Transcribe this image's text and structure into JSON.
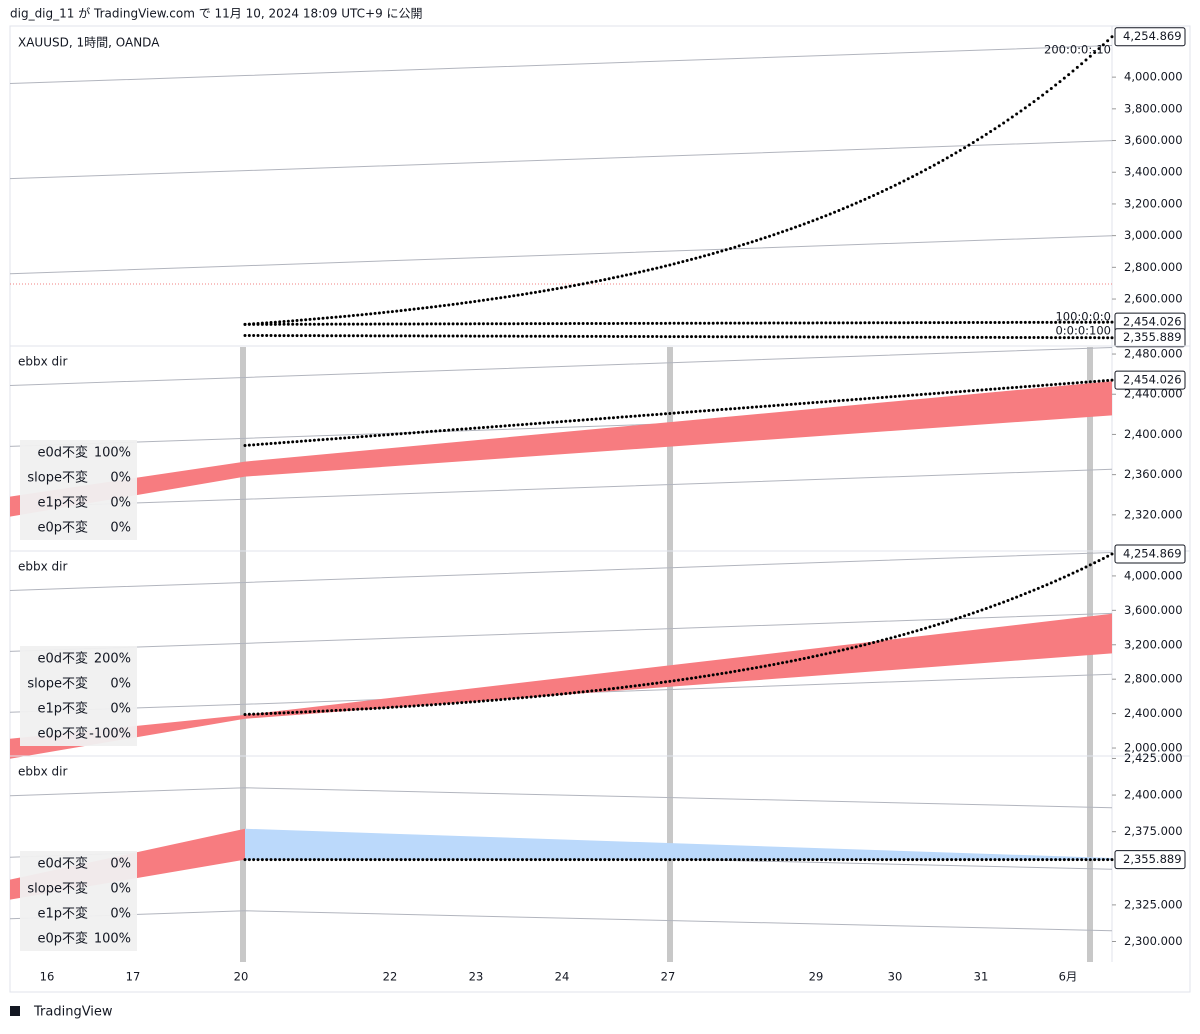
{
  "header": {
    "text": "dig_dig_11 が TradingView.com で 11月 10, 2024 18:09 UTC+9 に公開"
  },
  "footer": {
    "brand": "TradingView"
  },
  "x_axis": {
    "labels": [
      "16",
      "17",
      "20",
      "22",
      "23",
      "24",
      "27",
      "29",
      "30",
      "31",
      "6月"
    ]
  },
  "panes": [
    {
      "label": "XAUUSD, 1時間, OANDA",
      "ylim": [
        2310,
        4310
      ],
      "yticks": [
        {
          "value": 2600,
          "label": "2,600.000"
        },
        {
          "value": 2800,
          "label": "2,800.000"
        },
        {
          "value": 3000,
          "label": "3,000.000"
        },
        {
          "value": 3200,
          "label": "3,200.000"
        },
        {
          "value": 3400,
          "label": "3,400.000"
        },
        {
          "value": 3600,
          "label": "3,600.000"
        },
        {
          "value": 3800,
          "label": "3,800.000"
        },
        {
          "value": 4000,
          "label": "4,000.000"
        }
      ],
      "price_labels": [
        {
          "value": 4254.869,
          "label": "4,254.869"
        },
        {
          "value": 2454.026,
          "label": "2,454.026"
        },
        {
          "value": 2355.889,
          "label": "2,355.889"
        }
      ],
      "annotations": [
        "200:0:0:-10",
        "100:0:0:0",
        "0:0:0:100"
      ],
      "dotted": [
        {
          "start": 2440,
          "end": 4254.869
        },
        {
          "start": 2440,
          "end": 2454.026
        },
        {
          "start": 2370,
          "end": 2355.889
        }
      ]
    },
    {
      "label": "ebbx dir",
      "ylim": [
        2285,
        2487
      ],
      "yticks": [
        {
          "value": 2320,
          "label": "2,320.000"
        },
        {
          "value": 2360,
          "label": "2,360.000"
        },
        {
          "value": 2400,
          "label": "2,400.000"
        },
        {
          "value": 2440,
          "label": "2,440.000"
        },
        {
          "value": 2480,
          "label": "2,480.000"
        }
      ],
      "price_labels": [
        {
          "value": 2454.026,
          "label": "2,454.026"
        }
      ],
      "dotted": [
        {
          "start": 2389,
          "end": 2454.026
        }
      ],
      "band": {
        "start_low": 2358,
        "start_high": 2373,
        "end_low": 2419,
        "end_high": 2453
      },
      "table": [
        [
          "e0d不変",
          "100%"
        ],
        [
          "slope不変",
          "0%"
        ],
        [
          "e1p不変",
          "0%"
        ],
        [
          "e0p不変",
          "0%"
        ]
      ]
    },
    {
      "label": "ebbx dir",
      "ylim": [
        1919,
        4278
      ],
      "yticks": [
        {
          "value": 2000,
          "label": "2,000.000"
        },
        {
          "value": 2400,
          "label": "2,400.000"
        },
        {
          "value": 2800,
          "label": "2,800.000"
        },
        {
          "value": 3200,
          "label": "3,200.000"
        },
        {
          "value": 3600,
          "label": "3,600.000"
        },
        {
          "value": 4000,
          "label": "4,000.000"
        }
      ],
      "price_labels": [
        {
          "value": 4254.869,
          "label": "4,254.869"
        }
      ],
      "dotted": [
        {
          "start": 2390,
          "end": 4254.869
        }
      ],
      "band": {
        "start_low": 2340,
        "start_high": 2385,
        "end_low": 3100,
        "end_high": 3560
      },
      "table": [
        [
          "e0d不変",
          "200%"
        ],
        [
          "slope不変",
          "0%"
        ],
        [
          "e1p不変",
          "0%"
        ],
        [
          "e0p不変",
          "-100%"
        ]
      ]
    },
    {
      "label": "ebbx dir",
      "ylim": [
        2286,
        2426
      ],
      "yticks": [
        {
          "value": 2300,
          "label": "2,300.000"
        },
        {
          "value": 2325,
          "label": "2,325.000"
        },
        {
          "value": 2375,
          "label": "2,375.000"
        },
        {
          "value": 2400,
          "label": "2,400.000"
        },
        {
          "value": 2425,
          "label": "2,425.000"
        }
      ],
      "price_labels": [
        {
          "value": 2355.889,
          "label": "2,355.889"
        }
      ],
      "dotted": [
        {
          "start": 2355.889,
          "end": 2355.889
        }
      ],
      "band": {
        "start_low": 2355.889,
        "start_high": 2377,
        "end_low": 2355.889,
        "end_high": 2357
      },
      "table": [
        [
          "e0d不変",
          "0%"
        ],
        [
          "slope不変",
          "0%"
        ],
        [
          "e1p不変",
          "0%"
        ],
        [
          "e0p不変",
          "100%"
        ]
      ]
    }
  ]
}
